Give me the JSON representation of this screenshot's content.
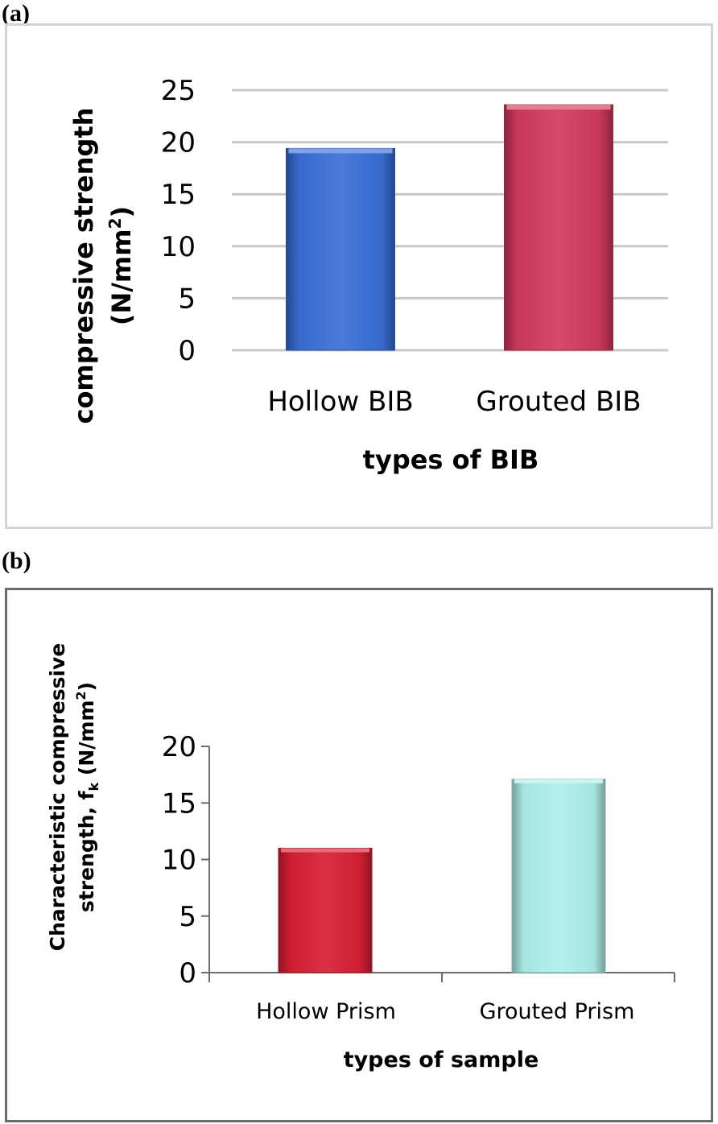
{
  "panels": {
    "a": {
      "label": "(a)"
    },
    "b": {
      "label": "(b)"
    }
  },
  "colors": {
    "blue": "#3a6fd8",
    "crimson": "#d23a5c",
    "red": "#d81e34",
    "cyan": "#aef0ea",
    "grid": "#c8c8c8",
    "axis_b": "#6b6b6b"
  },
  "chart_data": [
    {
      "type": "bar",
      "categories": [
        "Hollow BIB",
        "Grouted BIB"
      ],
      "values": [
        19.4,
        23.6
      ],
      "colors": [
        "#3a6fd8",
        "#d23a5c"
      ],
      "title": "",
      "xlabel": "types of BIB",
      "ylabel_line1": "compressive strength",
      "ylabel_line2_main": "(N/mm",
      "ylabel_line2_sup": "2",
      "ylabel_line2_end": ")",
      "ylim": [
        0,
        25
      ],
      "yticks": [
        0,
        5,
        10,
        15,
        20,
        25
      ],
      "grid": true
    },
    {
      "type": "bar",
      "categories": [
        "Hollow Prism",
        "Grouted Prism"
      ],
      "values": [
        11,
        17.1
      ],
      "colors": [
        "#d81e34",
        "#aef0ea"
      ],
      "title": "",
      "xlabel": "types of sample",
      "ylabel_line1": "Characteristic compressive",
      "ylabel_line2_a": "strength, f",
      "ylabel_line2_sub": "k",
      "ylabel_line2_b": " (N/mm",
      "ylabel_line2_sup": "2",
      "ylabel_line2_end": ")",
      "ylim": [
        0,
        20
      ],
      "yticks": [
        0,
        5,
        10,
        15,
        20
      ],
      "grid": false
    }
  ]
}
